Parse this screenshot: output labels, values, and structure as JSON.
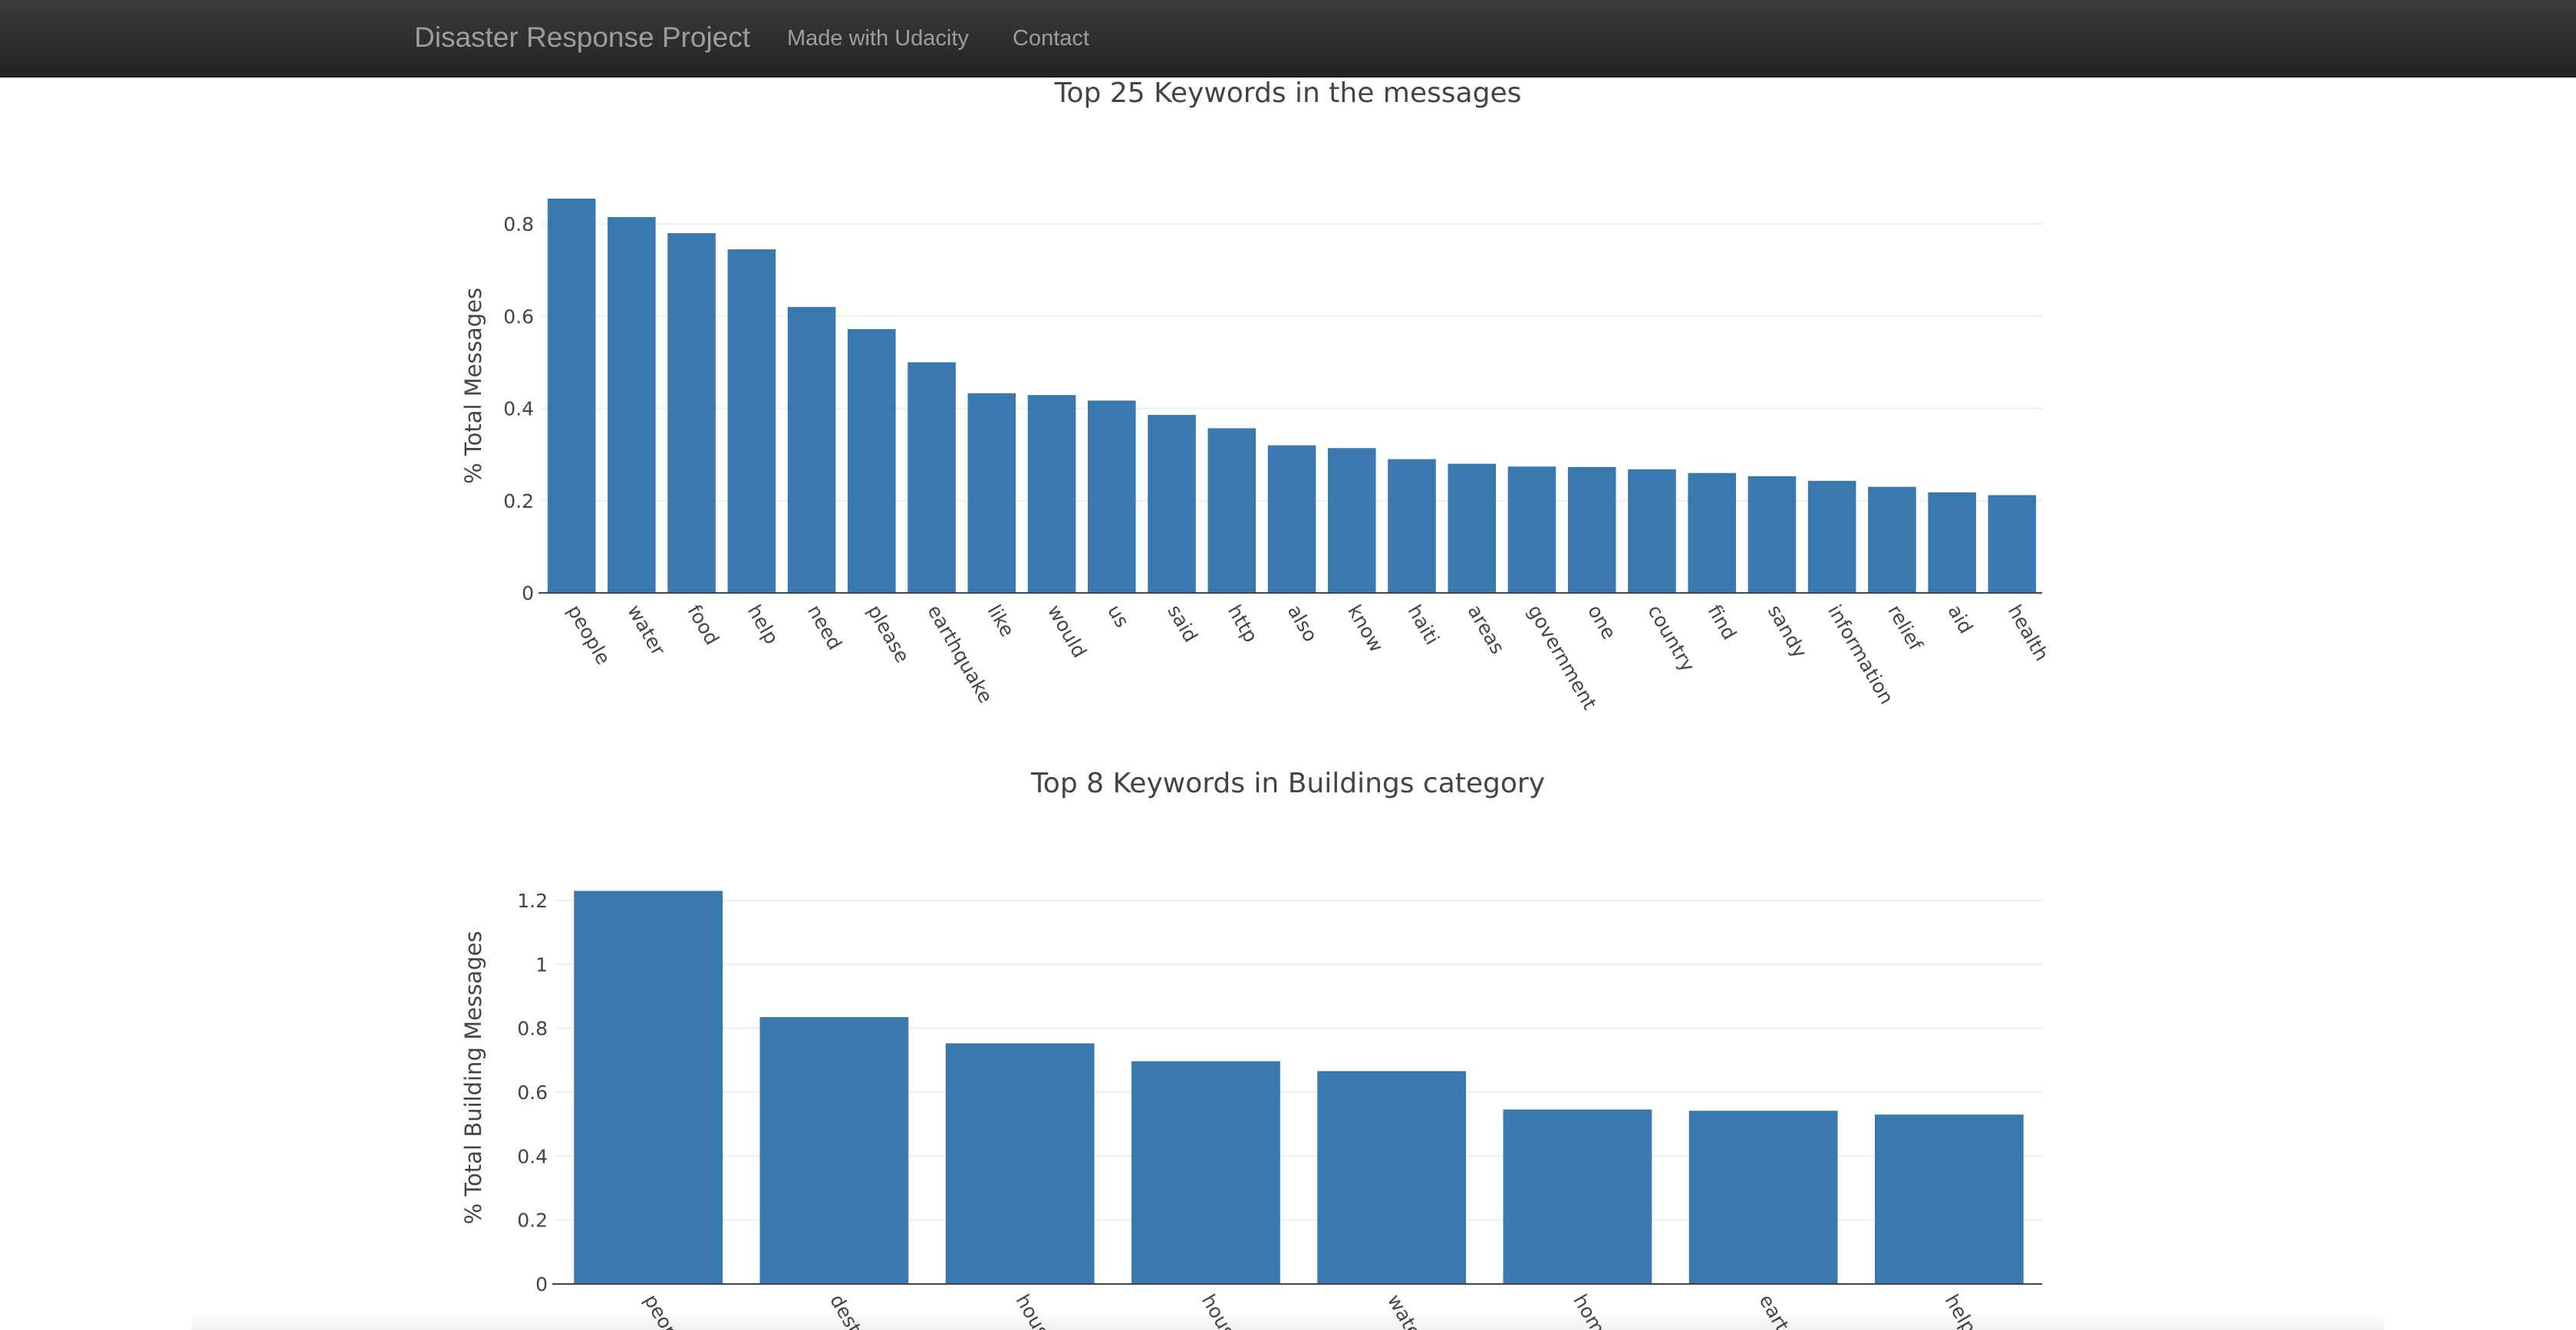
{
  "navbar": {
    "brand": "Disaster Response Project",
    "links": [
      "Made with Udacity",
      "Contact"
    ],
    "background": "#222222",
    "text_color": "#9d9d9d"
  },
  "chart_data": [
    {
      "type": "bar",
      "title": "Top 25 Keywords in the messages",
      "xlabel": "",
      "ylabel": "% Total Messages",
      "categories": [
        "people",
        "water",
        "food",
        "help",
        "need",
        "please",
        "earthquake",
        "like",
        "would",
        "us",
        "said",
        "http",
        "also",
        "know",
        "haiti",
        "areas",
        "government",
        "one",
        "country",
        "find",
        "sandy",
        "information",
        "relief",
        "aid",
        "health"
      ],
      "values": [
        0.855,
        0.815,
        0.78,
        0.745,
        0.62,
        0.572,
        0.5,
        0.433,
        0.429,
        0.417,
        0.386,
        0.357,
        0.32,
        0.314,
        0.29,
        0.28,
        0.274,
        0.273,
        0.268,
        0.26,
        0.253,
        0.243,
        0.23,
        0.218,
        0.212
      ],
      "ylim": [
        0,
        0.88
      ],
      "yticks": [
        {
          "value": 0,
          "label": "0"
        },
        {
          "value": 0.2,
          "label": "0.2"
        },
        {
          "value": 0.4,
          "label": "0.4"
        },
        {
          "value": 0.6,
          "label": "0.6"
        },
        {
          "value": 0.8,
          "label": "0.8"
        }
      ],
      "grid": true,
      "bar_color": "#3a78b0"
    },
    {
      "type": "bar",
      "title": "Top 8 Keywords in Buildings category",
      "xlabel": "",
      "ylabel": "% Total Building Messages",
      "categories": [
        "peop",
        "dest",
        "hous",
        "hous",
        "wate",
        "hom",
        "eart",
        "help"
      ],
      "values": [
        1.23,
        0.835,
        0.753,
        0.697,
        0.666,
        0.546,
        0.542,
        0.53
      ],
      "ylim": [
        0,
        1.25
      ],
      "yticks": [
        {
          "value": 0,
          "label": "0"
        },
        {
          "value": 0.2,
          "label": "0.2"
        },
        {
          "value": 0.4,
          "label": "0.4"
        },
        {
          "value": 0.6,
          "label": "0.6"
        },
        {
          "value": 0.8,
          "label": "0.8"
        },
        {
          "value": 1,
          "label": "1"
        },
        {
          "value": 1.2,
          "label": "1.2"
        }
      ],
      "grid": true,
      "bar_color": "#3a78b0"
    }
  ]
}
